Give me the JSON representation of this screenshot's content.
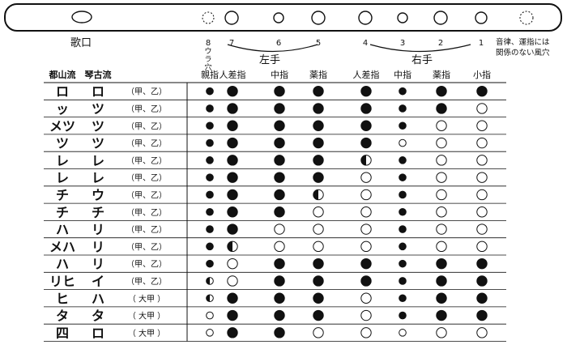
{
  "flute": {
    "utaguchi_label": "歌口",
    "hole_numbers": [
      "8",
      "7",
      "6",
      "5",
      "4",
      "3",
      "2",
      "1"
    ],
    "hole8_note": [
      "ウ",
      "ラ",
      "穴"
    ],
    "left_hand_label": "左手",
    "right_hand_label": "右手",
    "right_note_line1": "音律、運指には",
    "right_note_line2": "関係のない風穴"
  },
  "table": {
    "col_tozan": "都山流",
    "col_kinko": "琴古流",
    "finger_headers": [
      "親指",
      "人差指",
      "中指",
      "薬指",
      "人差指",
      "中指",
      "薬指",
      "小指"
    ],
    "rows": [
      {
        "tozan": "ロ",
        "kinko": "ロ",
        "register": "（甲、乙）",
        "holes": [
          "S",
          "B",
          "B",
          "B",
          "B",
          "S",
          "B",
          "B"
        ]
      },
      {
        "tozan": "ッ",
        "kinko": "ツ",
        "register": "（甲、乙）",
        "holes": [
          "S",
          "B",
          "B",
          "B",
          "B",
          "S",
          "B",
          "O"
        ]
      },
      {
        "tozan": "メツ",
        "kinko": "ツ",
        "register": "（甲、乙）",
        "holes": [
          "S",
          "B",
          "B",
          "B",
          "B",
          "S",
          "O",
          "O"
        ]
      },
      {
        "tozan": "ツ",
        "kinko": "ツ",
        "register": "（甲、乙）",
        "holes": [
          "S",
          "B",
          "B",
          "B",
          "B",
          "SO",
          "O",
          "O"
        ]
      },
      {
        "tozan": "レ",
        "kinko": "レ",
        "register": "（甲、乙）",
        "holes": [
          "S",
          "B",
          "B",
          "B",
          "H",
          "S",
          "O",
          "O"
        ]
      },
      {
        "tozan": "レ",
        "kinko": "レ",
        "register": "（甲、乙）",
        "holes": [
          "S",
          "B",
          "B",
          "B",
          "O",
          "S",
          "O",
          "O"
        ]
      },
      {
        "tozan": "チ",
        "kinko": "ウ",
        "register": "（甲、乙）",
        "holes": [
          "S",
          "B",
          "B",
          "H",
          "O",
          "S",
          "O",
          "O"
        ]
      },
      {
        "tozan": "チ",
        "kinko": "チ",
        "register": "（甲、乙）",
        "holes": [
          "S",
          "B",
          "B",
          "O",
          "O",
          "S",
          "O",
          "O"
        ]
      },
      {
        "tozan": "ハ",
        "kinko": "リ",
        "register": "（甲、乙）",
        "holes": [
          "S",
          "B",
          "O",
          "O",
          "O",
          "S",
          "O",
          "O"
        ]
      },
      {
        "tozan": "メハ",
        "kinko": "リ",
        "register": "（甲、乙）",
        "holes": [
          "S",
          "H",
          "O",
          "O",
          "O",
          "S",
          "O",
          "O"
        ]
      },
      {
        "tozan": "ハ",
        "kinko": "リ",
        "register": "（甲、乙）",
        "holes": [
          "S",
          "O",
          "B",
          "B",
          "B",
          "S",
          "B",
          "B"
        ]
      },
      {
        "tozan": "リヒ",
        "kinko": "イ",
        "register": "（甲、乙）",
        "holes": [
          "SH",
          "O",
          "B",
          "B",
          "B",
          "S",
          "B",
          "B"
        ]
      },
      {
        "tozan": "ヒ",
        "kinko": "ハ",
        "register": "（ 大甲 ）",
        "holes": [
          "SH",
          "B",
          "B",
          "B",
          "O",
          "S",
          "B",
          "B"
        ]
      },
      {
        "tozan": "タ",
        "kinko": "タ",
        "register": "（ 大甲 ）",
        "holes": [
          "SO",
          "B",
          "B",
          "B",
          "O",
          "S",
          "B",
          "B"
        ]
      },
      {
        "tozan": "四",
        "kinko": "ロ",
        "register": "（ 大甲 ）",
        "holes": [
          "SO",
          "B",
          "B",
          "O",
          "O",
          "SO",
          "O",
          "O"
        ]
      }
    ]
  }
}
